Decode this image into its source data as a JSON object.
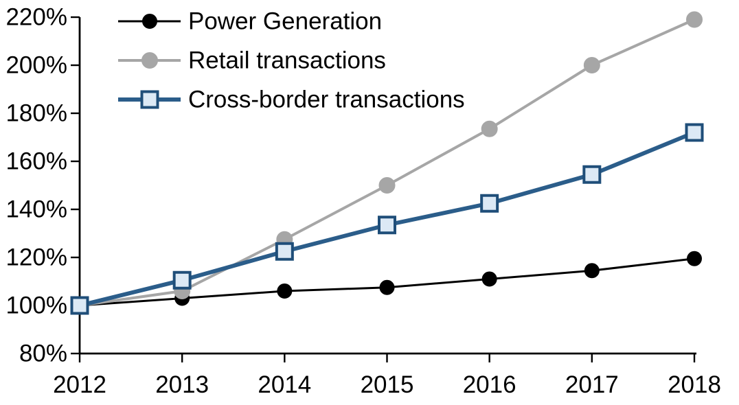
{
  "chart_data": {
    "type": "line",
    "title": "",
    "xlabel": "",
    "ylabel": "",
    "grid": false,
    "background_color": "#ffffff",
    "axis_color": "#000000",
    "legend_position": "top-left",
    "categories": [
      "2012",
      "2013",
      "2014",
      "2015",
      "2016",
      "2017",
      "2018"
    ],
    "ylim": [
      80,
      220
    ],
    "y_tick_step": 20,
    "y_ticks": [
      {
        "value": 220,
        "label": "220%"
      },
      {
        "value": 200,
        "label": "200%"
      },
      {
        "value": 180,
        "label": "180%"
      },
      {
        "value": 160,
        "label": "160%"
      },
      {
        "value": 140,
        "label": "140%"
      },
      {
        "value": 120,
        "label": "120%"
      },
      {
        "value": 100,
        "label": "100%"
      },
      {
        "value": 80,
        "label": "80%"
      }
    ],
    "series": [
      {
        "name": "Power Generation",
        "color": "#000000",
        "marker": "circle",
        "marker_fill": "#000000",
        "marker_border": "#000000",
        "marker_size": 21,
        "line_width": 3,
        "values": [
          100,
          103,
          106,
          107.5,
          111,
          114.5,
          119.5
        ]
      },
      {
        "name": "Retail transactions",
        "color": "#A6A6A6",
        "marker": "circle",
        "marker_fill": "#A6A6A6",
        "marker_border": "#A6A6A6",
        "marker_size": 23,
        "line_width": 4,
        "values": [
          100,
          106,
          127.5,
          150,
          173.5,
          200,
          219
        ]
      },
      {
        "name": "Cross-border transactions",
        "color": "#2B5D8A",
        "marker": "square",
        "marker_fill": "#DCE9F5",
        "marker_border": "#1F4E79",
        "marker_size": 23,
        "line_width": 6,
        "values": [
          100,
          110.5,
          122.5,
          133.5,
          142.5,
          154.5,
          172
        ]
      }
    ]
  }
}
